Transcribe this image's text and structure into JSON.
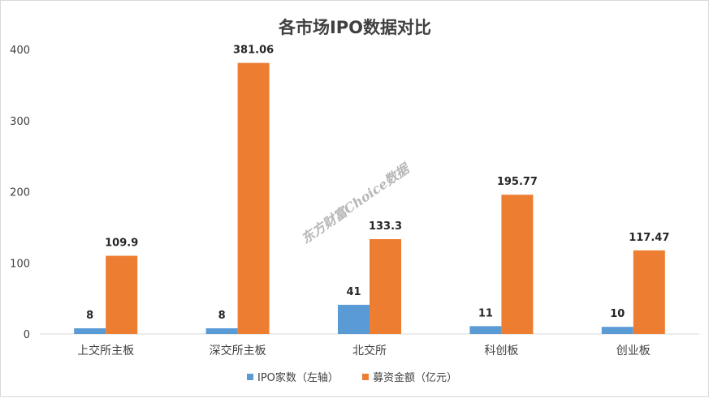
{
  "chart_data": {
    "type": "bar",
    "title": "各市场IPO数据对比",
    "categories": [
      "上交所主板",
      "深交所主板",
      "北交所",
      "科创板",
      "创业板"
    ],
    "series": [
      {
        "name": "IPO家数（左轴）",
        "values": [
          8,
          8,
          41,
          11,
          10
        ],
        "color": "#5b9bd5",
        "labels": [
          "8",
          "8",
          "41",
          "11",
          "10"
        ]
      },
      {
        "name": "募资金额（亿元）",
        "values": [
          109.9,
          381.06,
          133.3,
          195.77,
          117.47
        ],
        "color": "#ed7d31",
        "labels": [
          "109.9",
          "381.06",
          "133.3",
          "195.77",
          "117.47"
        ]
      }
    ],
    "yticks": [
      "0",
      "100",
      "200",
      "300",
      "400"
    ],
    "ylim": [
      0,
      400
    ],
    "xlabel": "",
    "ylabel": "",
    "grid": false,
    "legend_position": "bottom"
  },
  "watermark": "东方财富Choice数据"
}
